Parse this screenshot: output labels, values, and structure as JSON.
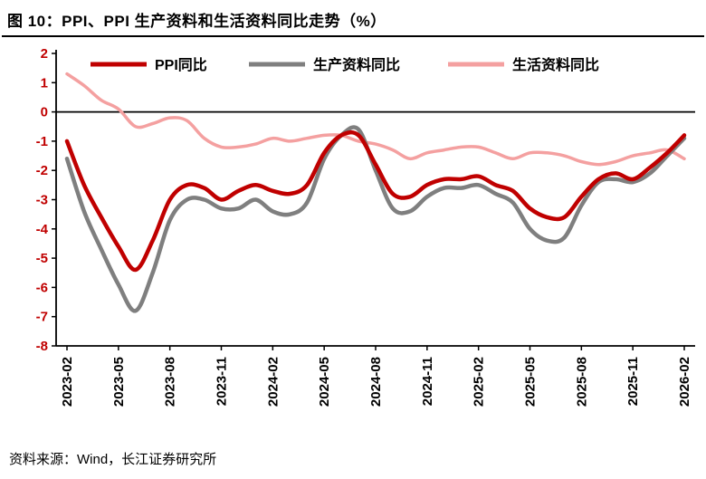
{
  "footer": {
    "source": "资料来源：Wind，长江证券研究所"
  },
  "colors": {
    "axis": "#000000",
    "y_tick_label": "#C00000",
    "x_tick_label": "#000000",
    "ppi_line": "#C00000",
    "production_line": "#7F7F7F",
    "living_line": "#F4A0A0"
  },
  "chart_data": {
    "type": "line",
    "title": "图 10：PPI、PPI 生产资料和生活资料同比走势（%）",
    "xlabel": "",
    "ylabel": "",
    "ylim": [
      -8,
      2
    ],
    "y_ticks": [
      2,
      1,
      0,
      -1,
      -2,
      -3,
      -4,
      -5,
      -6,
      -7,
      -8
    ],
    "x_tick_step": 3,
    "grid": false,
    "legend_position": "top-inside",
    "x": [
      "2023-02",
      "2023-03",
      "2023-04",
      "2023-05",
      "2023-06",
      "2023-07",
      "2023-08",
      "2023-09",
      "2023-10",
      "2023-11",
      "2023-12",
      "2024-01",
      "2024-02",
      "2024-03",
      "2024-04",
      "2024-05",
      "2024-06",
      "2024-07",
      "2024-08",
      "2024-09",
      "2024-10",
      "2024-11",
      "2024-12",
      "2025-01",
      "2025-02",
      "2025-03",
      "2025-04",
      "2025-05",
      "2025-06",
      "2025-07",
      "2025-08",
      "2025-09",
      "2025-10",
      "2025-11",
      "2025-12",
      "2026-01",
      "2026-02"
    ],
    "series": [
      {
        "name": "PPI同比",
        "color": "#C00000",
        "line_width": 4.5,
        "values": [
          -1.0,
          -2.5,
          -3.6,
          -4.6,
          -5.4,
          -4.4,
          -3.0,
          -2.5,
          -2.6,
          -3.0,
          -2.7,
          -2.5,
          -2.7,
          -2.8,
          -2.5,
          -1.4,
          -0.8,
          -0.8,
          -1.8,
          -2.8,
          -2.9,
          -2.5,
          -2.3,
          -2.3,
          -2.2,
          -2.5,
          -2.7,
          -3.3,
          -3.6,
          -3.6,
          -2.9,
          -2.3,
          -2.1,
          -2.3,
          -1.9,
          -1.4,
          -0.8
        ]
      },
      {
        "name": "生产资料同比",
        "color": "#7F7F7F",
        "line_width": 4.5,
        "values": [
          -1.6,
          -3.4,
          -4.7,
          -5.9,
          -6.8,
          -5.5,
          -3.7,
          -3.0,
          -3.0,
          -3.3,
          -3.3,
          -3.0,
          -3.4,
          -3.5,
          -3.1,
          -1.6,
          -0.8,
          -0.6,
          -2.0,
          -3.3,
          -3.4,
          -2.9,
          -2.6,
          -2.6,
          -2.5,
          -2.8,
          -3.1,
          -4.0,
          -4.4,
          -4.3,
          -3.2,
          -2.4,
          -2.3,
          -2.4,
          -2.1,
          -1.5,
          -0.9
        ]
      },
      {
        "name": "生活资料同比",
        "color": "#F4A0A0",
        "line_width": 3.5,
        "values": [
          1.3,
          0.9,
          0.4,
          0.1,
          -0.5,
          -0.4,
          -0.2,
          -0.3,
          -0.9,
          -1.2,
          -1.2,
          -1.1,
          -0.9,
          -1.0,
          -0.9,
          -0.8,
          -0.8,
          -1.0,
          -1.1,
          -1.3,
          -1.6,
          -1.4,
          -1.3,
          -1.2,
          -1.2,
          -1.4,
          -1.6,
          -1.4,
          -1.4,
          -1.5,
          -1.7,
          -1.8,
          -1.7,
          -1.5,
          -1.4,
          -1.3,
          -1.6
        ]
      }
    ]
  }
}
